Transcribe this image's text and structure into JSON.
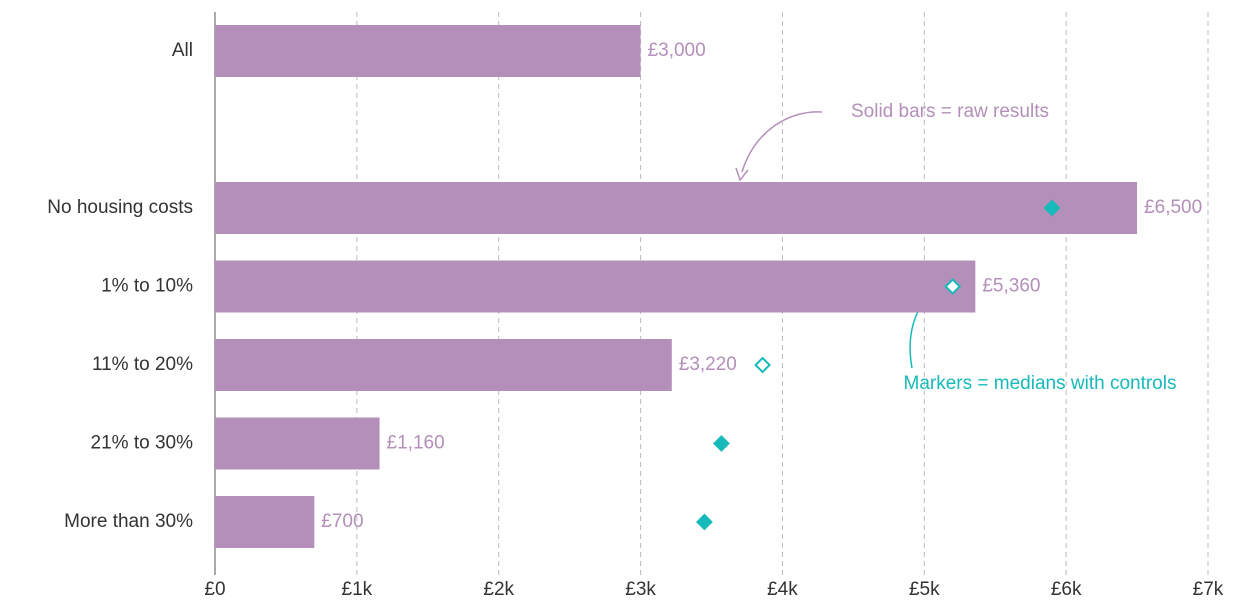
{
  "chart_data": {
    "type": "bar",
    "categories": [
      "All",
      null,
      "No housing costs",
      "1% to 10%",
      "11% to 20%",
      "21% to 30%",
      "More than 30%"
    ],
    "values": [
      3000,
      null,
      6500,
      5360,
      3220,
      1160,
      700
    ],
    "value_labels": [
      "£3,000",
      null,
      "£6,500",
      "£5,360",
      "£3,220",
      "£1,160",
      "£700"
    ],
    "color": "#b38fb9",
    "markers": [
      null,
      null,
      5900,
      5200,
      3860,
      3570,
      3450
    ],
    "marker_filled": [
      null,
      null,
      true,
      false,
      false,
      true,
      true
    ],
    "marker_color": "#17baba",
    "xlim": [
      0,
      7000
    ],
    "xticks": [
      {
        "value": 0,
        "label": "£0"
      },
      {
        "value": 1000,
        "label": "£1k"
      },
      {
        "value": 2000,
        "label": "£2k"
      },
      {
        "value": 3000,
        "label": "£3k"
      },
      {
        "value": 4000,
        "label": "£4k"
      },
      {
        "value": 5000,
        "label": "£5k"
      },
      {
        "value": 6000,
        "label": "£6k"
      },
      {
        "value": 7000,
        "label": "£7k"
      }
    ],
    "grid": true,
    "annotations": [
      "Solid bars = raw results",
      "Markers = medians with controls"
    ]
  }
}
